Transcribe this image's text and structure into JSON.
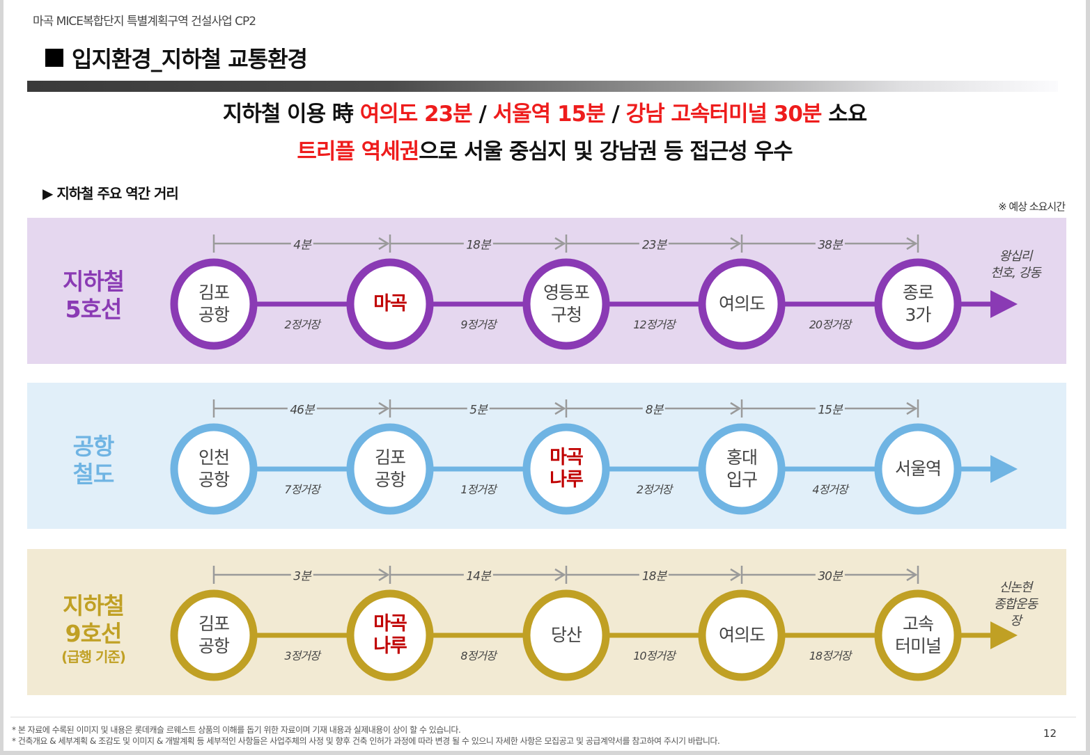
{
  "document": {
    "project_title": "마곡 MICE복합단지 특별계획구역 건설사업 CP2",
    "heading": "입지환경_지하철 교통환경",
    "page_number": "12"
  },
  "headline": {
    "line1": [
      {
        "text": "지하철 이용 時 ",
        "highlight": false
      },
      {
        "text": "여의도 23분",
        "highlight": true
      },
      {
        "text": " / ",
        "highlight": false
      },
      {
        "text": "서울역 15분",
        "highlight": true
      },
      {
        "text": " / ",
        "highlight": false
      },
      {
        "text": "강남 고속터미널 30분",
        "highlight": true
      },
      {
        "text": " 소요",
        "highlight": false
      }
    ],
    "line2": [
      {
        "text": "트리플 역세권",
        "highlight": true
      },
      {
        "text": "으로 서울 중심지 및 강남권 등 접근성 우수",
        "highlight": false
      }
    ]
  },
  "section": {
    "label": "▶ 지하철 주요 역간 거리",
    "note": "※ 예상 소요시간"
  },
  "colors": {
    "highlight_red": "#ee1c1c",
    "station_highlight": "#c00000",
    "bracket_gray": "#9a9a9a"
  },
  "lines": [
    {
      "name": "지하철\n5호선",
      "name_line1": "지하철",
      "name_line2": "5호선",
      "sub": "",
      "color": "#8a3ab4",
      "band_color": "#e5d7ef",
      "stations": [
        {
          "name": "김포\n공항",
          "highlight": false
        },
        {
          "name": "마곡",
          "highlight": true
        },
        {
          "name": "영등포\n구청",
          "highlight": false
        },
        {
          "name": "여의도",
          "highlight": false
        },
        {
          "name": "종로\n3가",
          "highlight": false
        }
      ],
      "times": [
        "4분",
        "18분",
        "23분",
        "38분"
      ],
      "stops": [
        "2정거장",
        "9정거장",
        "12정거장",
        "20정거장"
      ],
      "destination": "왕십리\n천호, 강동"
    },
    {
      "name": "공항\n철도",
      "name_line1": "공항",
      "name_line2": "철도",
      "sub": "",
      "color": "#6fb4e3",
      "band_color": "#e1eff9",
      "stations": [
        {
          "name": "인천\n공항",
          "highlight": false
        },
        {
          "name": "김포\n공항",
          "highlight": false
        },
        {
          "name": "마곡\n나루",
          "highlight": true
        },
        {
          "name": "홍대\n입구",
          "highlight": false
        },
        {
          "name": "서울역",
          "highlight": false
        }
      ],
      "times": [
        "46분",
        "5분",
        "8분",
        "15분"
      ],
      "stops": [
        "7정거장",
        "1정거장",
        "2정거장",
        "4정거장"
      ],
      "destination": ""
    },
    {
      "name": "지하철\n9호선",
      "name_line1": "지하철",
      "name_line2": "9호선",
      "sub": "(급행 기준)",
      "color": "#c0a024",
      "band_color": "#f2ead3",
      "stations": [
        {
          "name": "김포\n공항",
          "highlight": false
        },
        {
          "name": "마곡\n나루",
          "highlight": true
        },
        {
          "name": "당산",
          "highlight": false
        },
        {
          "name": "여의도",
          "highlight": false
        },
        {
          "name": "고속\n터미널",
          "highlight": false
        }
      ],
      "times": [
        "3분",
        "14분",
        "18분",
        "30분"
      ],
      "stops": [
        "3정거장",
        "8정거장",
        "10정거장",
        "18정거장"
      ],
      "destination": "신논현\n종합운동장"
    }
  ],
  "footer": {
    "disclaimer1": "* 본 자료에 수록된 이미지 및 내용은 롯데캐슬 르웨스트 상품의 이해를 돕기 위한 자료이며 기재 내용과 실제내용이 상이 할 수 있습니다.",
    "disclaimer2": "* 건축개요 & 세부계획 & 조감도 및 이미지 & 개발계획 등 세부적인 사항들은 사업주체의 사정 및 향후 건축 인허가 과정에 따라 변경 될 수 있으니 자세한 사항은 모집공고 및 공급계약서를 참고하여 주시기 바랍니다."
  }
}
